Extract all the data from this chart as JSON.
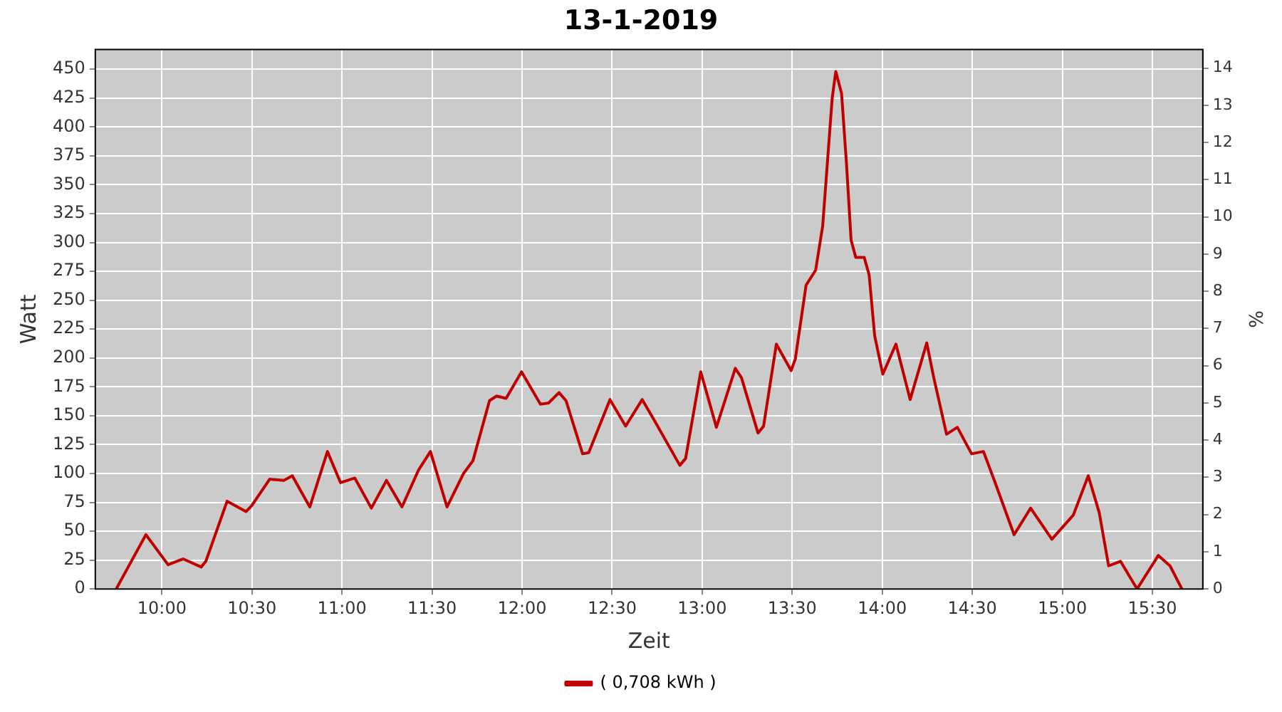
{
  "chart_data": {
    "type": "line",
    "title": "13-1-2019",
    "xlabel": "Zeit",
    "ylabel": "Watt",
    "y2label": "%",
    "x": [
      9.746,
      9.911,
      10.034,
      10.118,
      10.218,
      10.244,
      10.362,
      10.467,
      10.498,
      10.598,
      10.677,
      10.724,
      10.821,
      10.919,
      10.992,
      11.071,
      11.163,
      11.247,
      11.333,
      11.425,
      11.491,
      11.583,
      11.675,
      11.727,
      11.819,
      11.858,
      11.911,
      11.997,
      12.102,
      12.147,
      12.205,
      12.244,
      12.336,
      12.37,
      12.488,
      12.575,
      12.667,
      12.738,
      12.876,
      12.908,
      12.992,
      13.079,
      13.184,
      13.218,
      13.31,
      13.341,
      13.412,
      13.494,
      13.517,
      13.577,
      13.63,
      13.669,
      13.722,
      13.742,
      13.774,
      13.801,
      13.827,
      13.853,
      13.9,
      13.927,
      13.958,
      14.003,
      14.076,
      14.155,
      14.247,
      14.286,
      14.357,
      14.417,
      14.496,
      14.562,
      14.627,
      14.732,
      14.824,
      14.942,
      15.061,
      15.144,
      15.205,
      15.257,
      15.323,
      15.415,
      15.533,
      15.598,
      15.664
    ],
    "series": [
      {
        "name": "( 0,708 kWh )",
        "color": "#c00000",
        "values": [
          0,
          47,
          21,
          26,
          19,
          24,
          76,
          67,
          72,
          95,
          94,
          98,
          71,
          119,
          92,
          96,
          70,
          94,
          71,
          103,
          119,
          71,
          100,
          111,
          163,
          167,
          165,
          188,
          160,
          161,
          170,
          163,
          117,
          118,
          164,
          141,
          164,
          145,
          107,
          113,
          188,
          140,
          191,
          183,
          135,
          141,
          212,
          189,
          199,
          263,
          276,
          314,
          425,
          448,
          429,
          369,
          302,
          287,
          287,
          272,
          219,
          186,
          212,
          164,
          213,
          183,
          134,
          140,
          117,
          119,
          92,
          47,
          70,
          43,
          64,
          98,
          66,
          20,
          24,
          0,
          29,
          20,
          0
        ]
      }
    ],
    "xlim": [
      9.63,
      15.78
    ],
    "xticks": [
      {
        "value": 10,
        "label": "10:00"
      },
      {
        "value": 10.5,
        "label": "10:30"
      },
      {
        "value": 11,
        "label": "11:00"
      },
      {
        "value": 11.5,
        "label": "11:30"
      },
      {
        "value": 12,
        "label": "12:00"
      },
      {
        "value": 12.5,
        "label": "12:30"
      },
      {
        "value": 13,
        "label": "13:00"
      },
      {
        "value": 13.5,
        "label": "13:30"
      },
      {
        "value": 14,
        "label": "14:00"
      },
      {
        "value": 14.5,
        "label": "14:30"
      },
      {
        "value": 15,
        "label": "15:00"
      },
      {
        "value": 15.5,
        "label": "15:30"
      }
    ],
    "ylim": [
      0,
      467
    ],
    "yticks": [
      0,
      25,
      50,
      75,
      100,
      125,
      150,
      175,
      200,
      225,
      250,
      275,
      300,
      325,
      350,
      375,
      400,
      425,
      450
    ],
    "y2lim": [
      0,
      14.5
    ],
    "y2ticks": [
      0,
      1,
      2,
      3,
      4,
      5,
      6,
      7,
      8,
      9,
      10,
      11,
      12,
      13,
      14
    ],
    "grid": true,
    "legend": "bottom",
    "marker": "none",
    "line_style": "solid"
  }
}
